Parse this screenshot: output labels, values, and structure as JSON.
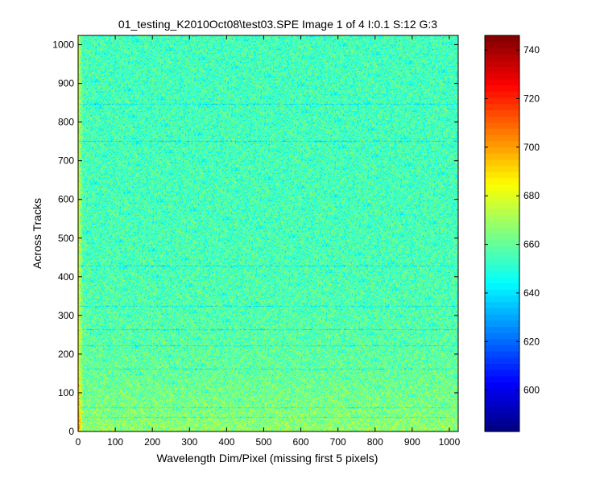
{
  "chart_data": {
    "type": "heatmap",
    "title": "01_testing_K2010Oct08\\test03.SPE  Image 1 of 4  I:0.1  S:12  G:3",
    "xlabel": "Wavelength Dim/Pixel (missing first 5 pixels)",
    "ylabel": "Across Tracks",
    "xlim": [
      0,
      1024
    ],
    "ylim": [
      0,
      1024
    ],
    "x_ticks": [
      0,
      100,
      200,
      300,
      400,
      500,
      600,
      700,
      800,
      900,
      1000
    ],
    "y_ticks": [
      0,
      100,
      200,
      300,
      400,
      500,
      600,
      700,
      800,
      900,
      1000
    ],
    "colorbar": {
      "clim": [
        583,
        746
      ],
      "ticks": [
        600,
        620,
        640,
        660,
        680,
        700,
        720,
        740
      ],
      "colormap": "jet"
    },
    "description_values": {
      "typical_level": 655,
      "bottom_rows_level": 668,
      "left_edge_level": 675,
      "dark_rows_y": [
        38,
        62,
        162,
        222,
        264,
        325,
        428,
        752,
        848
      ],
      "dark_rows_level": 638
    }
  }
}
